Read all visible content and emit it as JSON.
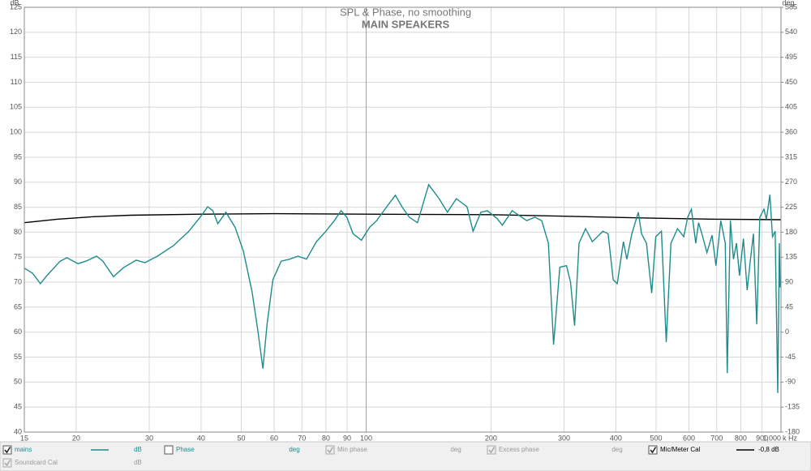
{
  "chart_data": {
    "type": "line",
    "title": "SPL & Phase, no smoothing",
    "subtitle": "MAIN SPEAKERS",
    "y_unit": "dB",
    "y2_unit": "deg",
    "x_unit": "k Hz",
    "log_x": true,
    "grid": true,
    "xlim": [
      15,
      1000
    ],
    "xticks": [
      15,
      20,
      30,
      40,
      50,
      60,
      70,
      80,
      90,
      100,
      200,
      300,
      400,
      500,
      600,
      700,
      800,
      900,
      {
        "value": 1000,
        "label": "1,000"
      }
    ],
    "ylim": [
      40,
      125
    ],
    "yticks": [
      40,
      45,
      50,
      55,
      60,
      65,
      70,
      75,
      80,
      85,
      90,
      95,
      100,
      105,
      110,
      115,
      120,
      125
    ],
    "y2lim": [
      -180,
      585
    ],
    "y2ticks": [
      -180,
      -135,
      -90,
      -45,
      0,
      45,
      90,
      135,
      180,
      225,
      270,
      315,
      360,
      405,
      450,
      495,
      540,
      585
    ],
    "series": [
      {
        "name": "mains",
        "color": "#1e8c8c",
        "unit": "dB",
        "checked": true,
        "x": [
          15,
          15.7,
          16.4,
          17,
          18.3,
          19,
          20.2,
          21.1,
          22.4,
          23.2,
          24.6,
          26,
          27.9,
          29.3,
          31.4,
          34.3,
          37.3,
          39.8,
          41.5,
          42.7,
          43.9,
          45.9,
          48.3,
          50.6,
          53.1,
          54.9,
          56.4,
          57.7,
          59.6,
          62.4,
          65.4,
          68.5,
          71.8,
          75.9,
          80,
          83.8,
          87,
          89.8,
          93,
          97.4,
          102,
          106,
          111,
          117.6,
          122,
          127,
          133,
          141.5,
          150,
          157,
          165,
          175,
          181,
          189,
          196,
          207,
          213,
          225,
          237,
          244,
          255,
          265,
          275,
          283,
          293,
          304,
          311,
          318,
          326,
          338,
          351,
          361,
          372,
          383,
          394,
          403,
          417,
          425,
          437,
          453,
          461,
          474,
          488,
          499,
          515,
          529,
          543,
          563,
          583,
          596,
          608,
          623,
          633,
          646,
          663,
          682,
          697,
          716,
          734,
          742,
          755,
          768,
          781,
          794,
          812,
          829,
          843,
          858,
          874,
          889,
          910,
          922,
          940,
          954,
          968,
          982,
          991,
          995
        ],
        "values": [
          72.8,
          71.8,
          69.7,
          71.3,
          74.2,
          74.9,
          73.7,
          74.2,
          75.2,
          74.2,
          71.1,
          72.9,
          74.4,
          73.9,
          75.2,
          77.3,
          80.1,
          83,
          85.1,
          84.3,
          81.7,
          84,
          81,
          76.2,
          68.1,
          60,
          52.7,
          61.6,
          70.5,
          74.2,
          74.6,
          75.2,
          74.6,
          78.1,
          80.2,
          82.3,
          84.3,
          83,
          79.7,
          78.4,
          81,
          82.3,
          84.6,
          87.4,
          85.1,
          83,
          81.9,
          89.5,
          86.7,
          84,
          86.7,
          85.1,
          80.2,
          84,
          84.3,
          82.7,
          81.4,
          84.3,
          83,
          82.3,
          83,
          82.3,
          77.8,
          57.5,
          73,
          73.3,
          70,
          61.3,
          77.8,
          80.7,
          78.1,
          79.1,
          80.2,
          79.7,
          70.5,
          69.7,
          78.1,
          74.6,
          79.7,
          84,
          79.7,
          77.8,
          67.8,
          79.1,
          80.2,
          58,
          77.8,
          80.7,
          79.1,
          83,
          84.6,
          77.8,
          81.9,
          79.4,
          75.9,
          79.4,
          73.3,
          82.3,
          77.8,
          51.8,
          82.3,
          74.6,
          77.8,
          71.3,
          78.7,
          68.4,
          74.2,
          79.7,
          61.6,
          83,
          84.6,
          82.6,
          87.5,
          79.1,
          80.2,
          47.8,
          77.8,
          68.9
        ]
      },
      {
        "name": "Mic/Meter Cal",
        "color": "#000000",
        "unit": "-0,8 dB",
        "checked": true,
        "x": [
          15,
          18,
          22,
          27,
          40,
          60,
          100,
          200,
          300,
          500,
          700,
          1000
        ],
        "values": [
          81.9,
          82.6,
          83.1,
          83.4,
          83.6,
          83.7,
          83.6,
          83.5,
          83.2,
          82.8,
          82.6,
          82.5
        ]
      }
    ],
    "legend_extra": [
      {
        "name": "Phase",
        "unit": "deg",
        "checked": false,
        "enabled": true,
        "color": "#1e8c8c"
      },
      {
        "name": "Min phase",
        "unit": "deg",
        "checked": true,
        "enabled": false,
        "color": "#999999"
      },
      {
        "name": "Excess phase",
        "unit": "deg",
        "checked": true,
        "enabled": false,
        "color": "#999999"
      },
      {
        "name": "Soundcard Cal",
        "unit": "dB",
        "checked": true,
        "enabled": false,
        "color": "#999999"
      }
    ]
  }
}
